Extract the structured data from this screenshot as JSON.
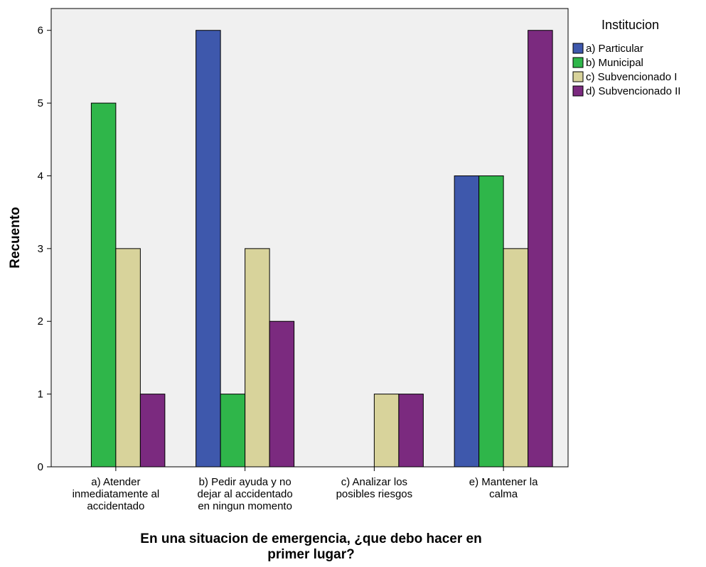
{
  "chart_data": {
    "type": "bar",
    "xlabel": "En una situacion de emergencia, ¿que debo hacer en primer lugar?",
    "xlabel_lines": [
      "En una situacion de emergencia, ¿que debo hacer en",
      "primer lugar?"
    ],
    "ylabel": "Recuento",
    "ylim": [
      0,
      6.3
    ],
    "yticks": [
      "0",
      "1",
      "2",
      "3",
      "4",
      "5",
      "6"
    ],
    "grid": false,
    "legend_title": "Institucion",
    "legend_position": "top-right, outside plot",
    "plot_background": "#f0f0f0",
    "categories": [
      "a) Atender inmediatamente al accidentado",
      "b) Pedir ayuda y no dejar al accidentado en ningun momento",
      "c) Analizar los posibles riesgos",
      "e) Mantener la calma"
    ],
    "category_lines": [
      [
        "a) Atender",
        "inmediatamente al",
        "accidentado"
      ],
      [
        "b) Pedir ayuda y no",
        "dejar al accidentado",
        "en ningun momento"
      ],
      [
        "c) Analizar los",
        "posibles riesgos"
      ],
      [
        "e) Mantener la",
        "calma"
      ]
    ],
    "series": [
      {
        "name": "a) Particular",
        "color": "#3e58ac",
        "values": [
          0,
          6,
          0,
          4
        ]
      },
      {
        "name": "b) Municipal",
        "color": "#2fb64a",
        "values": [
          5,
          1,
          0,
          4
        ]
      },
      {
        "name": "c) Subvencionado I",
        "color": "#d8d39b",
        "values": [
          3,
          3,
          1,
          3
        ]
      },
      {
        "name": "d) Subvencionado II",
        "color": "#7b2a7f",
        "values": [
          1,
          2,
          1,
          6
        ]
      }
    ]
  }
}
